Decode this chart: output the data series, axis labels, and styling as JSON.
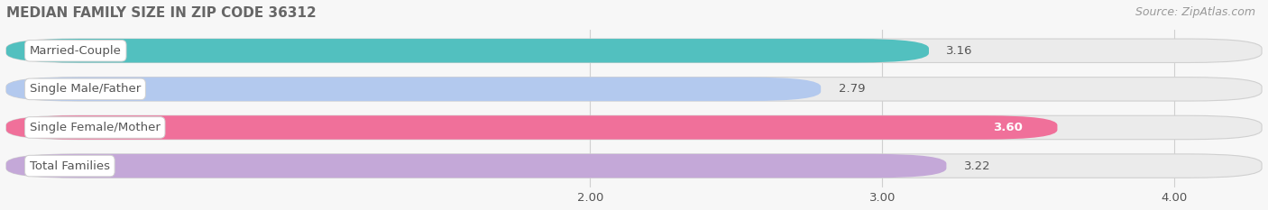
{
  "title": "MEDIAN FAMILY SIZE IN ZIP CODE 36312",
  "source": "Source: ZipAtlas.com",
  "categories": [
    "Married-Couple",
    "Single Male/Father",
    "Single Female/Mother",
    "Total Families"
  ],
  "values": [
    3.16,
    2.79,
    3.6,
    3.22
  ],
  "bar_colors": [
    "#52c0bf",
    "#b3c9ee",
    "#f0709a",
    "#c4a8d8"
  ],
  "bar_bg_color": "#ebebeb",
  "xlim_data": [
    2.0,
    4.0
  ],
  "bar_xstart": 0.0,
  "xticks": [
    2.0,
    3.0,
    4.0
  ],
  "xtick_labels": [
    "2.00",
    "3.00",
    "4.00"
  ],
  "background_color": "#f7f7f7",
  "title_color": "#666666",
  "label_color": "#555555",
  "value_color_default": "#555555",
  "value_color_white": [
    "Single Female/Mother"
  ],
  "source_color": "#999999",
  "title_fontsize": 11,
  "label_fontsize": 9.5,
  "value_fontsize": 9.5,
  "source_fontsize": 9,
  "bar_height": 0.62,
  "bar_gap": 0.38
}
